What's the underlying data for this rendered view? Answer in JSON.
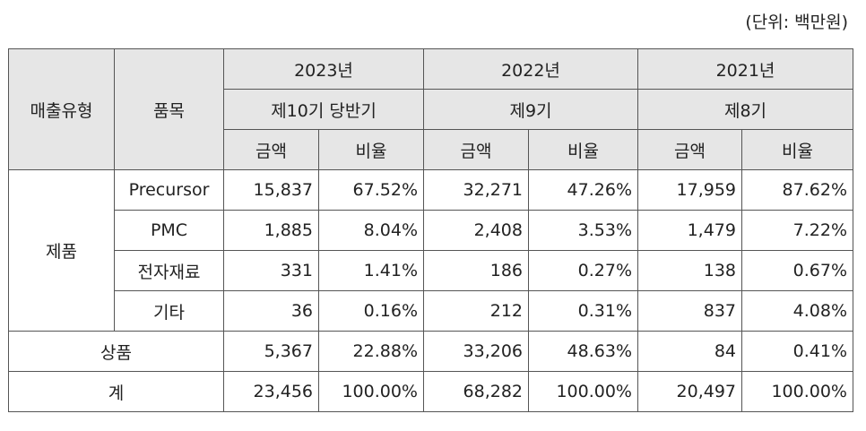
{
  "unit": "(단위: 백만원)",
  "table": {
    "header": {
      "type_label": "매출유형",
      "item_label": "품목",
      "years": [
        "2023년",
        "2022년",
        "2021년"
      ],
      "periods": [
        "제10기 당반기",
        "제9기",
        "제8기"
      ],
      "metrics": [
        "금액",
        "비율",
        "금액",
        "비율",
        "금액",
        "비율"
      ]
    },
    "groups": [
      {
        "label": "제품",
        "rows": [
          {
            "item": "Precursor",
            "cells": [
              "15,837",
              "67.52%",
              "32,271",
              "47.26%",
              "17,959",
              "87.62%"
            ]
          },
          {
            "item": "PMC",
            "cells": [
              "1,885",
              "8.04%",
              "2,408",
              "3.53%",
              "1,479",
              "7.22%"
            ]
          },
          {
            "item": "전자재료",
            "cells": [
              "331",
              "1.41%",
              "186",
              "0.27%",
              "138",
              "0.67%"
            ]
          },
          {
            "item": "기타",
            "cells": [
              "36",
              "0.16%",
              "212",
              "0.31%",
              "837",
              "4.08%"
            ]
          }
        ]
      }
    ],
    "rows": [
      {
        "label": "상품",
        "cells": [
          "5,367",
          "22.88%",
          "33,206",
          "48.63%",
          "84",
          "0.41%"
        ]
      },
      {
        "label": "계",
        "cells": [
          "23,456",
          "100.00%",
          "68,282",
          "100.00%",
          "20,497",
          "100.00%"
        ]
      }
    ]
  }
}
